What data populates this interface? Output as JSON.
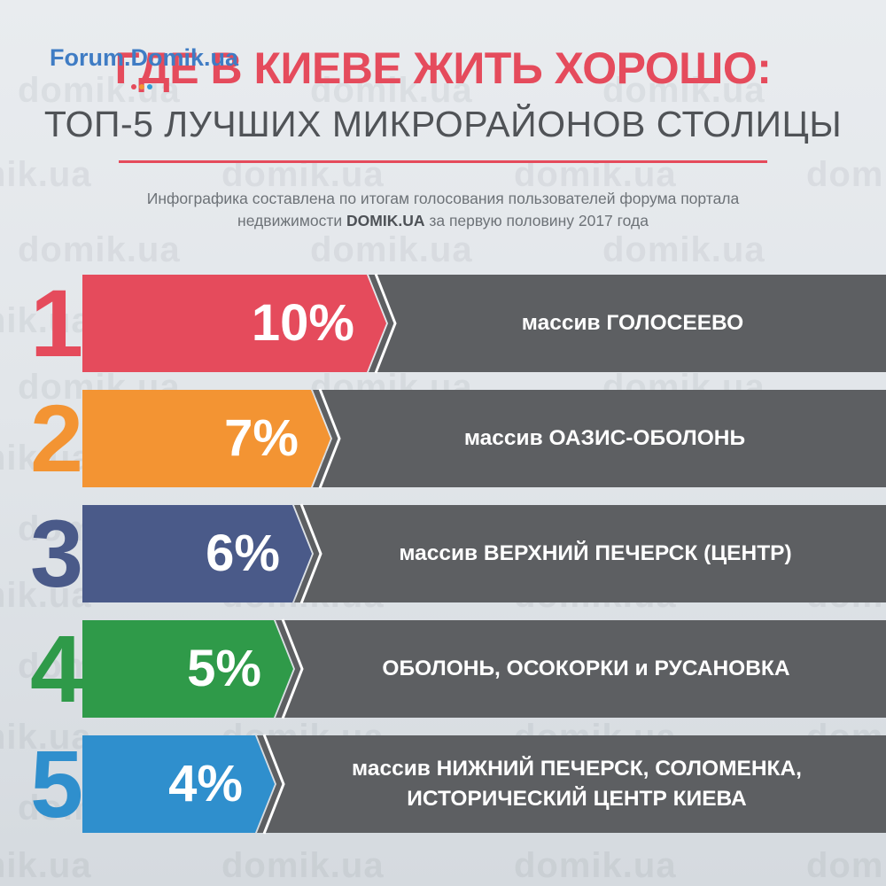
{
  "logo": {
    "text": "Forum.Domik.ua",
    "dot_colors": [
      "#e54b5c",
      "#f39433",
      "#2f9bd6"
    ]
  },
  "watermark": "domik.ua",
  "header": {
    "title": "ГДЕ В КИЕВЕ ЖИТЬ ХОРОШО:",
    "subtitle": "ТОП-5 ЛУЧШИХ МИКРОРАЙОНОВ СТОЛИЦЫ",
    "note_part1": "Инфографика составлена по итогам голосования пользователей форума портала",
    "note_part2": "недвижимости ",
    "note_brand": "DOMIK.UA",
    "note_part3": " за первую половину 2017 года"
  },
  "chart_data": {
    "type": "bar",
    "orientation": "horizontal",
    "value_unit": "%",
    "scale_max": 10,
    "categories": [
      [
        "массив ГОЛОСЕЕВО"
      ],
      [
        "массив ОАЗИС-ОБОЛОНЬ"
      ],
      [
        "массив ВЕРХНИЙ ПЕЧЕРСК (ЦЕНТР)"
      ],
      [
        "ОБОЛОНЬ, ОСОКОРКИ и РУСАНОВКА"
      ],
      [
        "массив НИЖНИЙ ПЕЧЕРСК, СОЛОМЕНКА,",
        "ИСТОРИЧЕСКИЙ ЦЕНТР КИЕВА"
      ]
    ],
    "ranks": [
      "1",
      "2",
      "3",
      "4",
      "5"
    ],
    "values": [
      10,
      7,
      6,
      5,
      4
    ],
    "value_labels": [
      "10%",
      "7%",
      "6%",
      "5%",
      "4%"
    ],
    "colors": [
      "#e54b5c",
      "#f39433",
      "#4a5a89",
      "#2f9a49",
      "#2f8fcd"
    ],
    "label_bar_color": "#5d5f62"
  }
}
